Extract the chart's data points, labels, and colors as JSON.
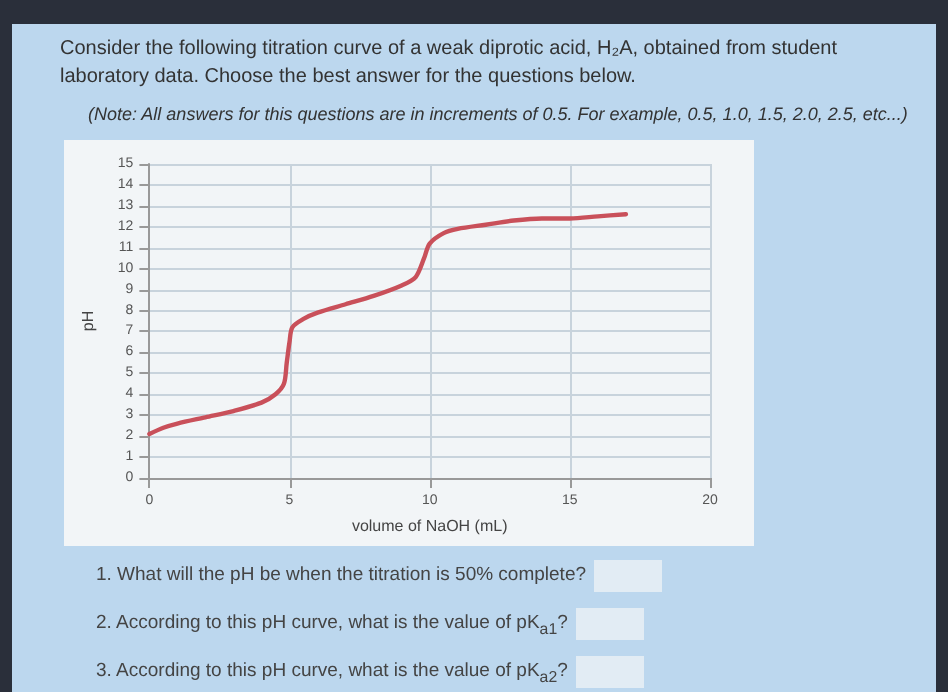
{
  "chart_data": {
    "type": "line",
    "title": "Consider the following titration curve of a weak diprotic acid, H₂A, obtained from student laboratory data. Choose the best answer for the questions below.",
    "subtitle": "(Note: All answers for this questions are in increments of 0.5. For example, 0.5, 1.0, 1.5, 2.0, 2.5, etc...)",
    "xlabel": "volume of NaOH (mL)",
    "ylabel": "pH",
    "annotations": [
      "1. What will the pH be when the titration is 50% complete?",
      "2. According to this pH curve, what is the value of pK$_{a1}$?",
      "3. According to this pH curve, what is the value of pK$_{a2}$?"
    ],
    "x": [
      0,
      0.5,
      1,
      2,
      3,
      4,
      4.5,
      4.8,
      4.9,
      5,
      5.1,
      5.5,
      6,
      7,
      8,
      9,
      9.5,
      9.8,
      10,
      10.5,
      11,
      12,
      13,
      14,
      15,
      16,
      17
    ],
    "series": [
      {
        "color": "#c9505a",
        "values": [
          2.1,
          2.4,
          2.6,
          2.9,
          3.2,
          3.6,
          4.0,
          4.5,
          5.5,
          6.5,
          7.2,
          7.6,
          7.9,
          8.3,
          8.7,
          9.2,
          9.6,
          10.5,
          11.2,
          11.7,
          11.9,
          12.1,
          12.3,
          12.4,
          12.4,
          12.5,
          12.6
        ]
      }
    ],
    "xlim": [
      0,
      20
    ],
    "xticks": [
      0,
      5,
      10,
      15,
      20
    ],
    "ylim": [
      0,
      15
    ],
    "yticks": [
      0,
      1,
      2,
      3,
      4,
      5,
      6,
      7,
      8,
      9,
      10,
      11,
      12,
      13,
      14,
      15
    ],
    "grid": true,
    "marker": "none",
    "line_style": "solid"
  }
}
